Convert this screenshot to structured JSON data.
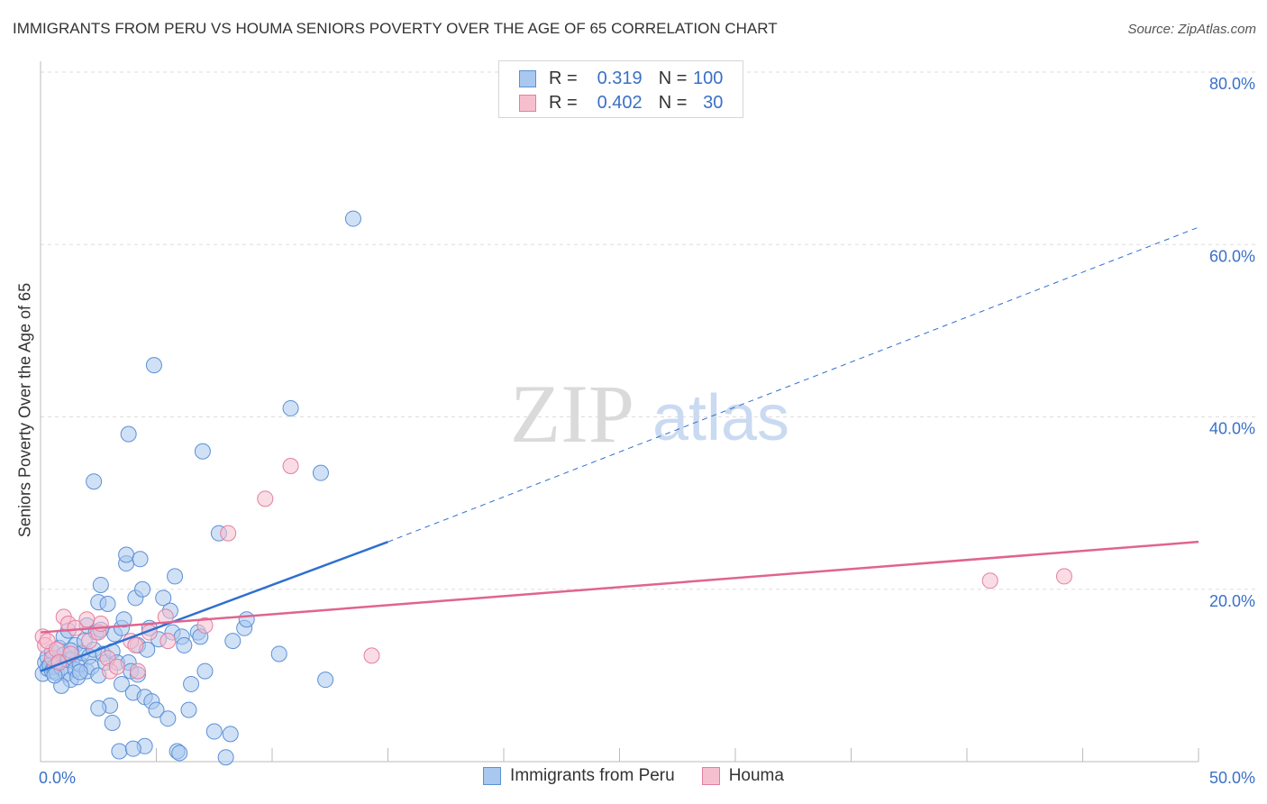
{
  "header": {
    "title": "IMMIGRANTS FROM PERU VS HOUMA SENIORS POVERTY OVER THE AGE OF 65 CORRELATION CHART",
    "source": "Source: ZipAtlas.com"
  },
  "watermark": {
    "zip": "ZIP",
    "atlas": "atlas"
  },
  "legend": {
    "rows": [
      {
        "r_label": "R =",
        "r_value": "0.319",
        "n_label": "N =",
        "n_value": "100"
      },
      {
        "r_label": "R =",
        "r_value": "0.402",
        "n_label": "N =",
        "n_value": "30"
      }
    ]
  },
  "colors": {
    "series1_fill": "#a9c8ef",
    "series1_stroke": "#5b8fd6",
    "series1_line": "#2f6fd0",
    "series2_fill": "#f6bfd0",
    "series2_stroke": "#e37f9f",
    "series2_line": "#e0648f",
    "axis_label": "#3a70c8",
    "grid": "#dddddd"
  },
  "chart_data": {
    "type": "scatter",
    "title": "IMMIGRANTS FROM PERU VS HOUMA SENIORS POVERTY OVER THE AGE OF 65 CORRELATION CHART",
    "xlabel": "",
    "ylabel": "Seniors Poverty Over the Age of 65",
    "xlim": [
      0,
      50
    ],
    "ylim": [
      0,
      80
    ],
    "x_tick_labels": [
      "0.0%",
      "50.0%"
    ],
    "y_ticks": [
      20,
      40,
      60,
      80
    ],
    "y_tick_labels": [
      "20.0%",
      "40.0%",
      "60.0%",
      "80.0%"
    ],
    "grid": true,
    "legend_position": "top-center",
    "series": [
      {
        "name": "Immigrants from Peru",
        "points": [
          [
            0.1,
            10.2
          ],
          [
            0.2,
            11.5
          ],
          [
            0.3,
            12.1
          ],
          [
            0.3,
            10.8
          ],
          [
            0.4,
            11.2
          ],
          [
            0.5,
            10.5
          ],
          [
            0.5,
            12.8
          ],
          [
            0.6,
            11.0
          ],
          [
            0.7,
            10.3
          ],
          [
            0.8,
            13.2
          ],
          [
            0.8,
            11.6
          ],
          [
            0.9,
            10.9
          ],
          [
            1.0,
            12.4
          ],
          [
            1.0,
            14.5
          ],
          [
            1.1,
            10.2
          ],
          [
            1.2,
            11.8
          ],
          [
            1.2,
            15.2
          ],
          [
            1.3,
            9.5
          ],
          [
            1.4,
            12.0
          ],
          [
            1.5,
            13.5
          ],
          [
            1.5,
            10.7
          ],
          [
            1.6,
            9.8
          ],
          [
            1.7,
            11.3
          ],
          [
            1.8,
            12.6
          ],
          [
            1.9,
            14.0
          ],
          [
            2.0,
            10.5
          ],
          [
            2.0,
            15.8
          ],
          [
            2.1,
            12.2
          ],
          [
            2.2,
            11.0
          ],
          [
            2.3,
            13.0
          ],
          [
            2.4,
            15.0
          ],
          [
            2.5,
            18.5
          ],
          [
            2.5,
            10.0
          ],
          [
            2.6,
            20.5
          ],
          [
            2.7,
            12.5
          ],
          [
            2.8,
            11.5
          ],
          [
            2.9,
            18.3
          ],
          [
            3.0,
            6.5
          ],
          [
            3.1,
            12.8
          ],
          [
            3.1,
            4.5
          ],
          [
            3.2,
            14.8
          ],
          [
            3.3,
            11.5
          ],
          [
            3.4,
            1.2
          ],
          [
            3.5,
            15.5
          ],
          [
            3.5,
            9.0
          ],
          [
            3.6,
            16.5
          ],
          [
            3.7,
            23.0
          ],
          [
            3.7,
            24.0
          ],
          [
            3.8,
            11.5
          ],
          [
            3.9,
            10.5
          ],
          [
            4.0,
            8.0
          ],
          [
            4.1,
            19.0
          ],
          [
            4.2,
            13.5
          ],
          [
            4.3,
            23.5
          ],
          [
            4.4,
            20.0
          ],
          [
            4.5,
            7.5
          ],
          [
            4.5,
            1.8
          ],
          [
            4.6,
            13.0
          ],
          [
            4.7,
            15.5
          ],
          [
            4.8,
            7.0
          ],
          [
            4.9,
            46.0
          ],
          [
            5.0,
            6.0
          ],
          [
            5.1,
            14.2
          ],
          [
            5.3,
            19.0
          ],
          [
            5.5,
            5.0
          ],
          [
            5.6,
            17.5
          ],
          [
            5.7,
            15.0
          ],
          [
            5.8,
            21.5
          ],
          [
            5.9,
            1.2
          ],
          [
            6.0,
            1.0
          ],
          [
            6.1,
            14.5
          ],
          [
            6.2,
            13.5
          ],
          [
            6.4,
            6.0
          ],
          [
            6.5,
            9.0
          ],
          [
            6.8,
            15.0
          ],
          [
            6.9,
            14.5
          ],
          [
            7.0,
            36.0
          ],
          [
            7.1,
            10.5
          ],
          [
            7.5,
            3.5
          ],
          [
            7.7,
            26.5
          ],
          [
            8.0,
            0.5
          ],
          [
            8.2,
            3.2
          ],
          [
            8.3,
            14.0
          ],
          [
            8.8,
            15.5
          ],
          [
            8.9,
            16.5
          ],
          [
            10.3,
            12.5
          ],
          [
            10.8,
            41.0
          ],
          [
            12.1,
            33.5
          ],
          [
            12.3,
            9.5
          ],
          [
            13.5,
            63.0
          ],
          [
            2.3,
            32.5
          ],
          [
            3.8,
            38.0
          ],
          [
            4.0,
            1.5
          ],
          [
            0.9,
            8.8
          ],
          [
            2.5,
            6.2
          ],
          [
            1.7,
            10.4
          ],
          [
            0.6,
            10.0
          ],
          [
            1.3,
            12.9
          ],
          [
            2.6,
            15.3
          ],
          [
            4.2,
            10.1
          ]
        ],
        "trend": {
          "x0": 0,
          "y0": 10.5,
          "x1": 15,
          "y1": 25.5,
          "x_ext_end": 50,
          "y_ext_end": 62.0
        }
      },
      {
        "name": "Houma",
        "points": [
          [
            0.1,
            14.5
          ],
          [
            0.2,
            13.5
          ],
          [
            0.3,
            14.0
          ],
          [
            0.5,
            12.0
          ],
          [
            0.7,
            13.0
          ],
          [
            0.8,
            11.5
          ],
          [
            1.0,
            16.8
          ],
          [
            1.2,
            16.0
          ],
          [
            1.3,
            12.5
          ],
          [
            1.5,
            15.5
          ],
          [
            2.0,
            16.5
          ],
          [
            2.1,
            14.0
          ],
          [
            2.5,
            15.0
          ],
          [
            2.6,
            16.0
          ],
          [
            2.9,
            12.0
          ],
          [
            3.0,
            10.5
          ],
          [
            3.3,
            11.0
          ],
          [
            3.9,
            14.0
          ],
          [
            4.1,
            13.5
          ],
          [
            4.2,
            10.5
          ],
          [
            4.7,
            15.0
          ],
          [
            5.4,
            16.8
          ],
          [
            5.5,
            14.0
          ],
          [
            7.1,
            15.8
          ],
          [
            8.1,
            26.5
          ],
          [
            9.7,
            30.5
          ],
          [
            10.8,
            34.3
          ],
          [
            14.3,
            12.3
          ],
          [
            41.0,
            21.0
          ],
          [
            44.2,
            21.5
          ]
        ],
        "trend": {
          "x0": 0,
          "y0": 15.0,
          "x1": 50,
          "y1": 25.5
        }
      }
    ]
  }
}
